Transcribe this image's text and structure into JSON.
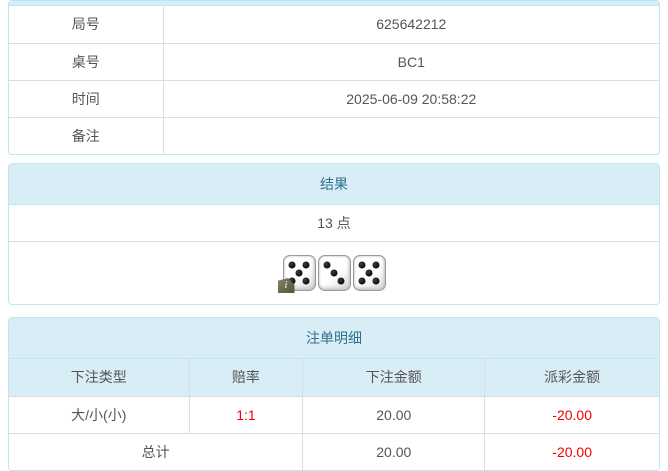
{
  "game_info": {
    "rows": [
      {
        "label": "局号",
        "value": "625642212"
      },
      {
        "label": "桌号",
        "value": "BC1"
      },
      {
        "label": "时间",
        "value": "2025-06-09 20:58:22"
      },
      {
        "label": "备注",
        "value": ""
      }
    ]
  },
  "result": {
    "title": "结果",
    "points_text": "13 点",
    "dice": [
      5,
      3,
      5
    ],
    "info_badge_glyph": "i"
  },
  "bets": {
    "title": "注单明细",
    "columns": [
      "下注类型",
      "赔率",
      "下注金额",
      "派彩金额"
    ],
    "rows": [
      {
        "type": "大/小(小)",
        "odds": "1:1",
        "bet": "20.00",
        "payout": "-20.00"
      }
    ],
    "total": {
      "label": "总计",
      "bet": "20.00",
      "payout": "-20.00"
    }
  },
  "colors": {
    "panel_border": "#bce8f1",
    "heading_bg": "#d9edf7",
    "heading_text": "#31708f",
    "negative_text": "#f20000",
    "cell_border": "#dddddd"
  }
}
